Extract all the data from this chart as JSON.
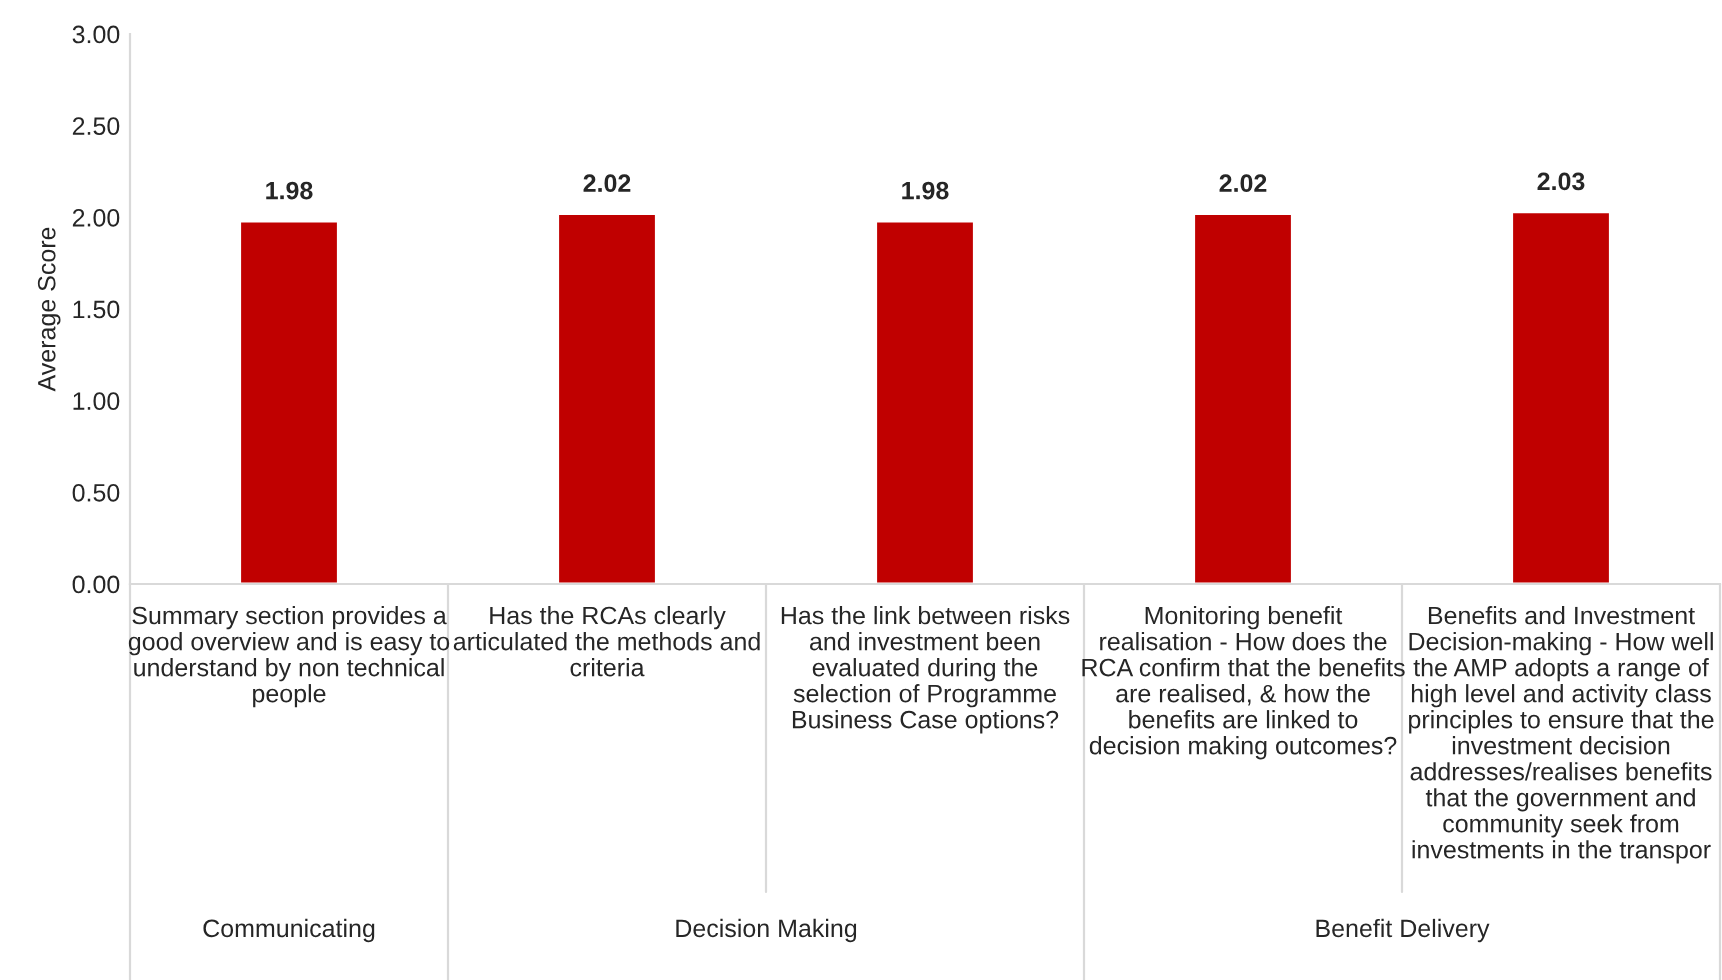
{
  "chart_data": {
    "type": "bar",
    "ylabel": "Average Score",
    "categories": [
      "Summary section provides a\ngood overview and is easy to\nunderstand by non technical\npeople",
      "Has the RCAs clearly\narticulated the methods and\ncriteria",
      "Has the link between risks\nand investment been\nevaluated during the\nselection of Programme\nBusiness Case options?",
      "Monitoring benefit\nrealisation - How does the\nRCA confirm that the benefits\nare realised, & how the\nbenefits are linked to\ndecision making outcomes?",
      "Benefits and Investment\nDecision-making - How well\nthe AMP adopts a range of\nhigh level and activity class\nprinciples to ensure that the\ninvestment decision\naddresses/realises benefits\nthat the government and\ncommunity seek from\ninvestments in the transpor"
    ],
    "values": [
      1.98,
      2.02,
      1.98,
      2.02,
      2.03
    ],
    "color": "#c00000",
    "ylim": [
      0,
      3
    ],
    "yticks": [
      {
        "value": 0,
        "label": "0.00"
      },
      {
        "value": 0.5,
        "label": "0.50"
      },
      {
        "value": 1,
        "label": "1.00"
      },
      {
        "value": 1.5,
        "label": "1.50"
      },
      {
        "value": 2,
        "label": "2.00"
      },
      {
        "value": 2.5,
        "label": "2.50"
      },
      {
        "value": 3,
        "label": "3.00"
      }
    ],
    "data_labels": true,
    "annotations": [
      "Communicating",
      "Decision Making",
      "Benefit Delivery"
    ]
  }
}
